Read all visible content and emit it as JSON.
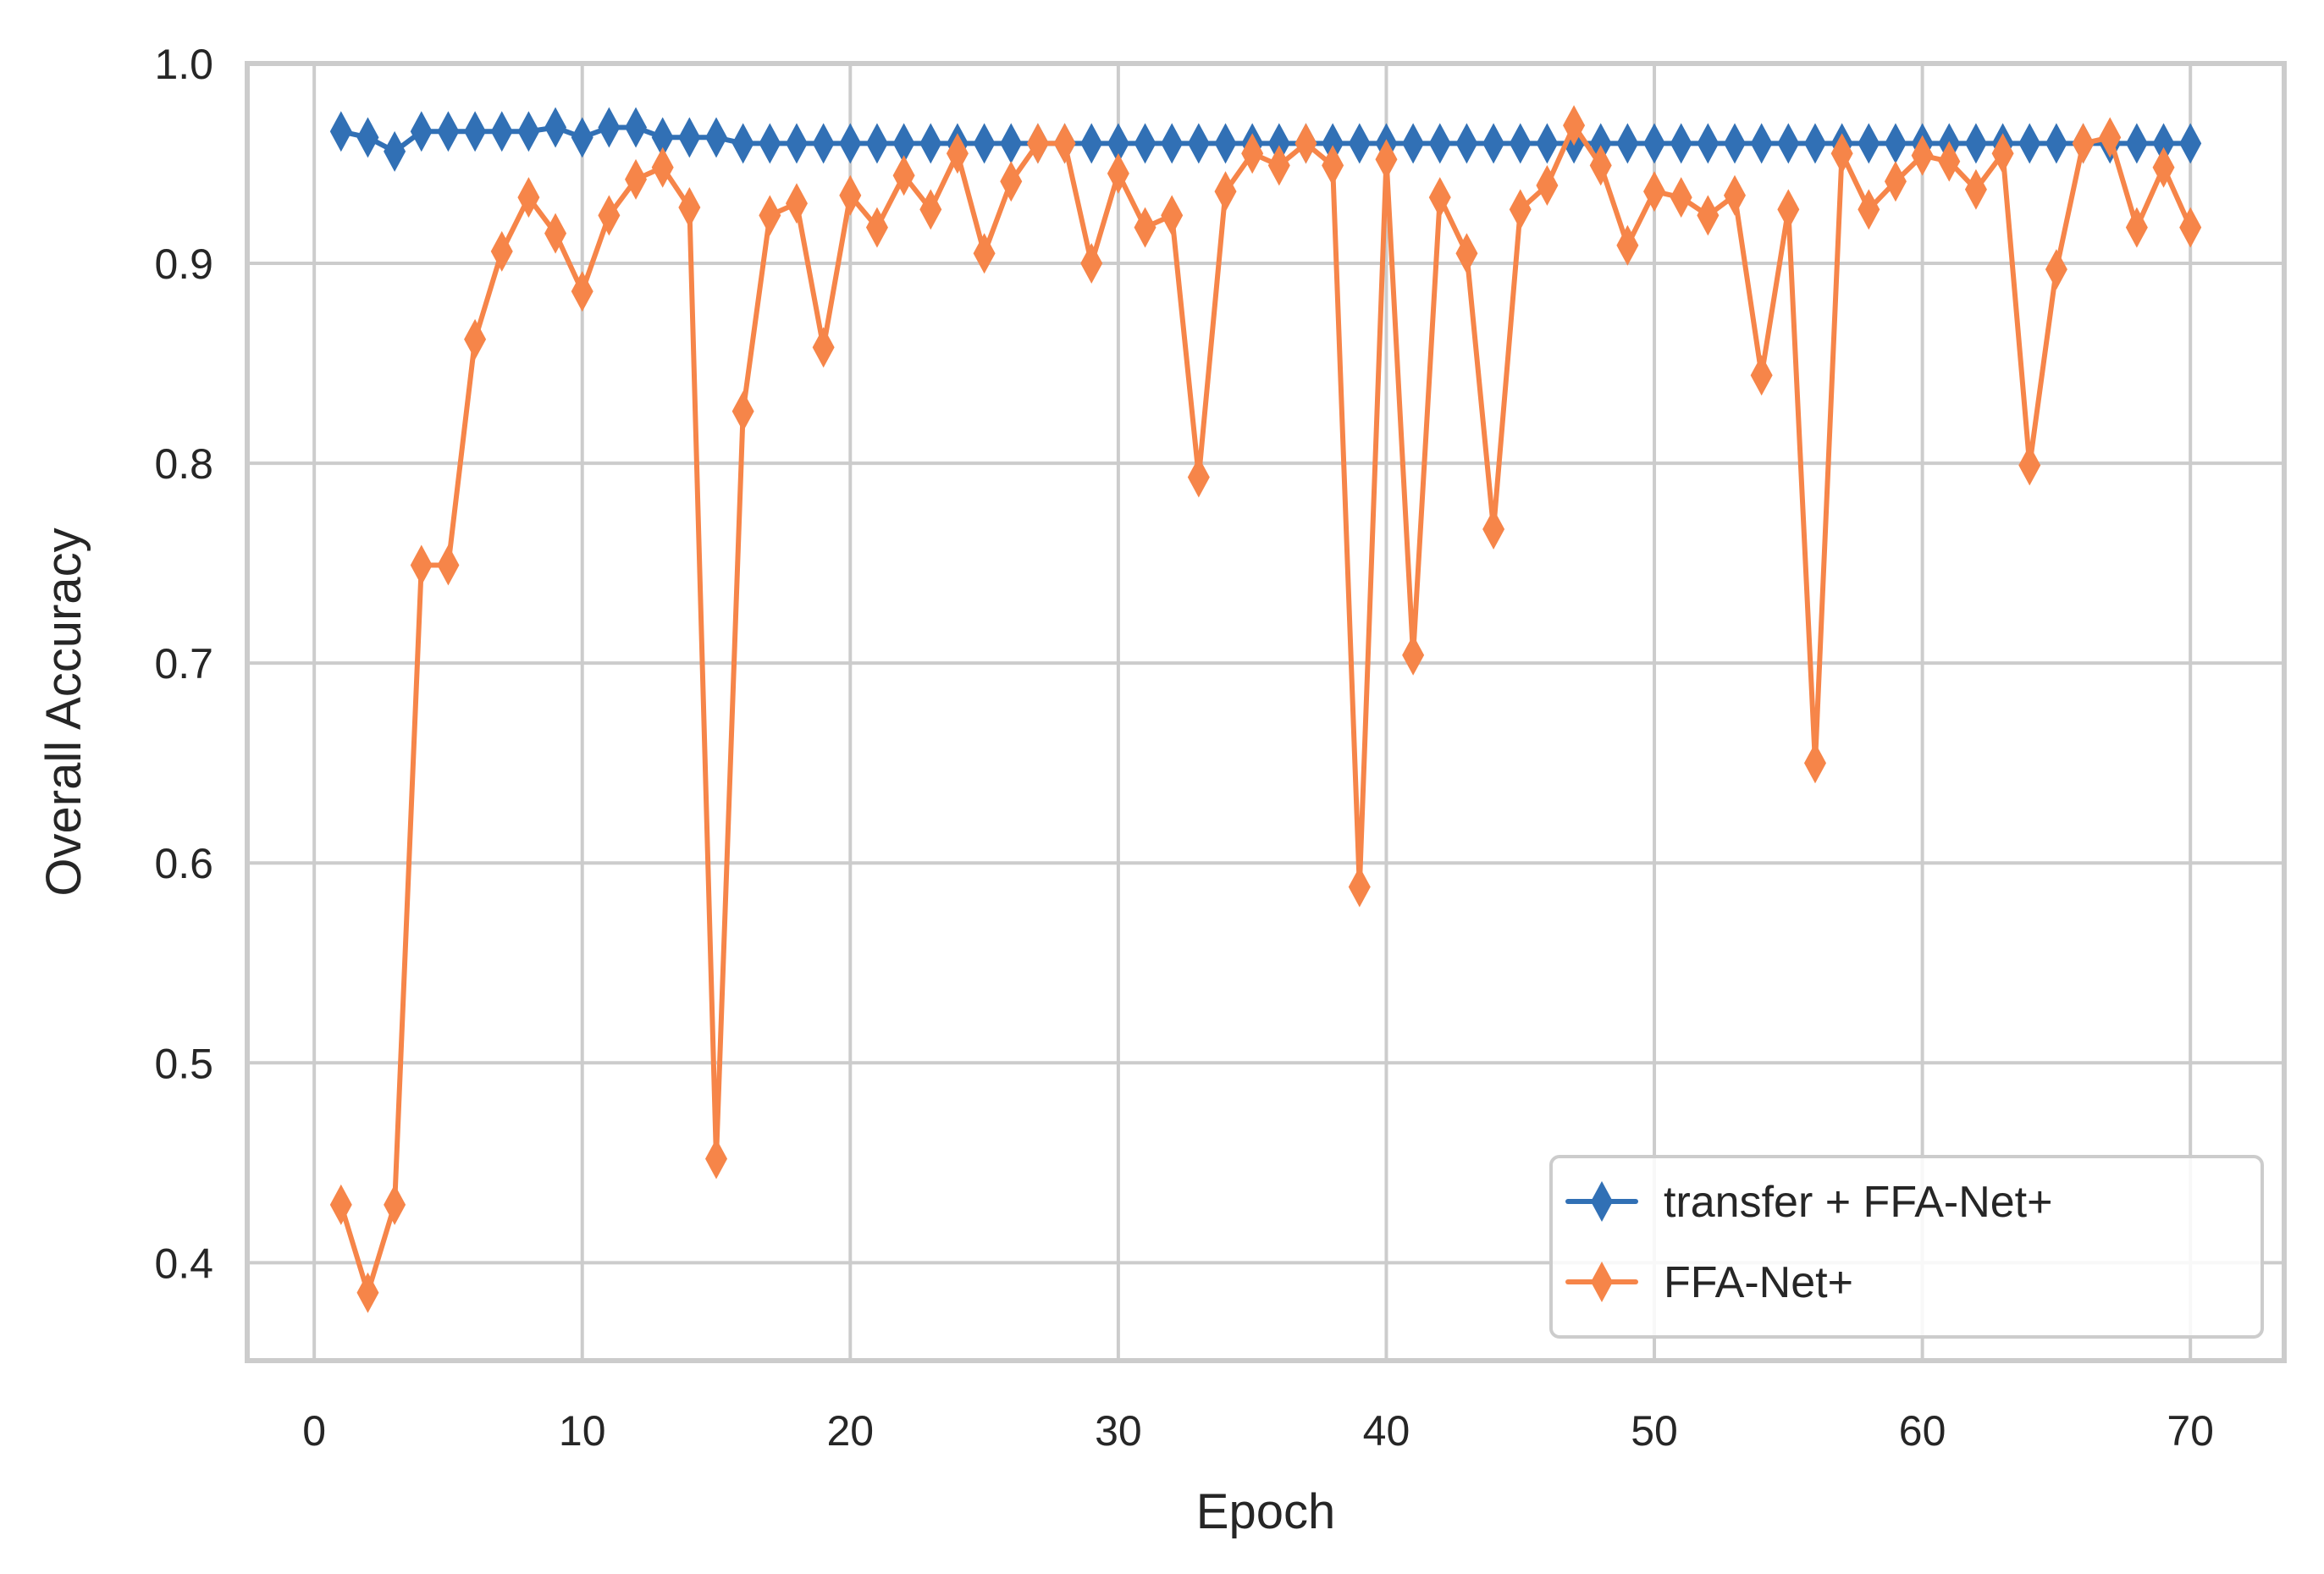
{
  "chart_data": {
    "type": "line",
    "title": "",
    "xlabel": "Epoch",
    "ylabel": "Overall Accuracy",
    "xlim": [
      -2.5,
      73.5
    ],
    "ylim": [
      0.351,
      1.0
    ],
    "xticks": [
      0,
      10,
      20,
      30,
      40,
      50,
      60,
      70
    ],
    "xtick_labels": [
      "0",
      "10",
      "20",
      "30",
      "40",
      "50",
      "60",
      "70"
    ],
    "yticks": [
      0.4,
      0.5,
      0.6,
      0.7,
      0.8,
      0.9,
      1.0
    ],
    "ytick_labels": [
      "0.4",
      "0.5",
      "0.6",
      "0.7",
      "0.8",
      "0.9",
      "1.0"
    ],
    "grid": true,
    "legend_position": "lower right",
    "x": [
      1,
      2,
      3,
      4,
      5,
      6,
      7,
      8,
      9,
      10,
      11,
      12,
      13,
      14,
      15,
      16,
      17,
      18,
      19,
      20,
      21,
      22,
      23,
      24,
      25,
      26,
      27,
      28,
      29,
      30,
      31,
      32,
      33,
      34,
      35,
      36,
      37,
      38,
      39,
      40,
      41,
      42,
      43,
      44,
      45,
      46,
      47,
      48,
      49,
      50,
      51,
      52,
      53,
      54,
      55,
      56,
      57,
      58,
      59,
      60,
      61,
      62,
      63,
      64,
      65,
      66,
      67,
      68,
      69,
      70
    ],
    "series": [
      {
        "name": "transfer + FFA-Net+",
        "color": "#3170b5",
        "marker": "thin_diamond",
        "values": [
          0.966,
          0.963,
          0.956,
          0.966,
          0.966,
          0.966,
          0.966,
          0.966,
          0.968,
          0.963,
          0.968,
          0.968,
          0.963,
          0.963,
          0.963,
          0.96,
          0.96,
          0.96,
          0.96,
          0.96,
          0.96,
          0.96,
          0.96,
          0.96,
          0.96,
          0.96,
          0.96,
          0.96,
          0.96,
          0.96,
          0.96,
          0.96,
          0.96,
          0.96,
          0.96,
          0.96,
          0.96,
          0.96,
          0.96,
          0.96,
          0.96,
          0.96,
          0.96,
          0.96,
          0.96,
          0.96,
          0.96,
          0.96,
          0.96,
          0.96,
          0.96,
          0.96,
          0.96,
          0.96,
          0.96,
          0.96,
          0.96,
          0.96,
          0.96,
          0.96,
          0.96,
          0.96,
          0.96,
          0.96,
          0.96,
          0.96,
          0.96,
          0.96,
          0.96,
          0.96
        ]
      },
      {
        "name": "FFA-Net+",
        "color": "#f68549",
        "marker": "thin_diamond",
        "values": [
          0.429,
          0.385,
          0.429,
          0.749,
          0.749,
          0.862,
          0.906,
          0.933,
          0.915,
          0.886,
          0.924,
          0.942,
          0.948,
          0.928,
          0.452,
          0.826,
          0.924,
          0.93,
          0.858,
          0.934,
          0.918,
          0.944,
          0.927,
          0.955,
          0.905,
          0.941,
          0.96,
          0.96,
          0.9,
          0.945,
          0.918,
          0.924,
          0.793,
          0.936,
          0.955,
          0.949,
          0.96,
          0.949,
          0.588,
          0.952,
          0.704,
          0.933,
          0.905,
          0.767,
          0.927,
          0.939,
          0.969,
          0.949,
          0.909,
          0.936,
          0.933,
          0.924,
          0.934,
          0.844,
          0.927,
          0.65,
          0.955,
          0.927,
          0.941,
          0.954,
          0.951,
          0.937,
          0.955,
          0.799,
          0.897,
          0.96,
          0.963,
          0.918,
          0.948,
          0.918
        ]
      }
    ]
  },
  "colors": {
    "background": "#ffffff",
    "grid": "#cccccc",
    "spine": "#cccccc",
    "text": "#262626",
    "legend_border": "#cccccc"
  }
}
